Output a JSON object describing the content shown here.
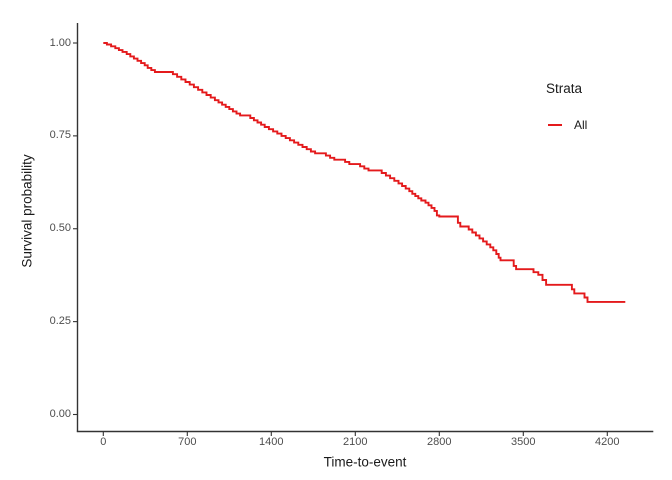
{
  "figure": {
    "background": "#FFFFFF",
    "colors": {
      "curve": "#E41A1C",
      "axis_line": "#333333",
      "tick_text": "#4D4D4D",
      "title_text": "#1A1A1A"
    }
  },
  "chart_data": {
    "type": "line",
    "subtype": "kaplan-meier-step-curve",
    "title": "",
    "xlabel": "Time-to-event",
    "ylabel": "Survival probability",
    "grid": false,
    "x_ticks": [
      0,
      700,
      1400,
      2100,
      2800,
      3500,
      4200
    ],
    "x_tick_labels": [
      "0",
      "700",
      "1400",
      "2100",
      "2800",
      "3500",
      "4200"
    ],
    "y_ticks": [
      0,
      0.25,
      0.5,
      0.75,
      1
    ],
    "y_tick_labels": [
      "0.00",
      "0.25",
      "0.50",
      "0.75",
      "1.00"
    ],
    "xlim": [
      -215,
      4580
    ],
    "ylim": [
      0,
      1.05
    ],
    "x_range_shown": [
      0,
      4350
    ],
    "legend": {
      "title": "Strata",
      "position": "right-inside-top",
      "entries": [
        {
          "label": "All",
          "color": "#E41A1C"
        }
      ]
    },
    "series": [
      {
        "name": "All",
        "color": "#E41A1C",
        "step": true,
        "points": [
          [
            0,
            1.0
          ],
          [
            30,
            0.996
          ],
          [
            65,
            0.991
          ],
          [
            100,
            0.986
          ],
          [
            130,
            0.981
          ],
          [
            160,
            0.976
          ],
          [
            195,
            0.97
          ],
          [
            225,
            0.964
          ],
          [
            255,
            0.958
          ],
          [
            285,
            0.952
          ],
          [
            315,
            0.946
          ],
          [
            345,
            0.94
          ],
          [
            370,
            0.933
          ],
          [
            400,
            0.927
          ],
          [
            430,
            0.922
          ],
          [
            580,
            0.916
          ],
          [
            615,
            0.909
          ],
          [
            650,
            0.902
          ],
          [
            685,
            0.895
          ],
          [
            720,
            0.888
          ],
          [
            755,
            0.881
          ],
          [
            790,
            0.874
          ],
          [
            825,
            0.867
          ],
          [
            860,
            0.86
          ],
          [
            895,
            0.853
          ],
          [
            930,
            0.846
          ],
          [
            960,
            0.84
          ],
          [
            990,
            0.834
          ],
          [
            1020,
            0.828
          ],
          [
            1050,
            0.822
          ],
          [
            1080,
            0.816
          ],
          [
            1110,
            0.81
          ],
          [
            1140,
            0.805
          ],
          [
            1225,
            0.798
          ],
          [
            1255,
            0.792
          ],
          [
            1285,
            0.786
          ],
          [
            1315,
            0.78
          ],
          [
            1345,
            0.774
          ],
          [
            1380,
            0.768
          ],
          [
            1415,
            0.762
          ],
          [
            1450,
            0.756
          ],
          [
            1485,
            0.75
          ],
          [
            1520,
            0.744
          ],
          [
            1555,
            0.738
          ],
          [
            1590,
            0.732
          ],
          [
            1625,
            0.726
          ],
          [
            1660,
            0.72
          ],
          [
            1695,
            0.714
          ],
          [
            1730,
            0.708
          ],
          [
            1765,
            0.703
          ],
          [
            1855,
            0.697
          ],
          [
            1890,
            0.691
          ],
          [
            1925,
            0.686
          ],
          [
            2015,
            0.68
          ],
          [
            2050,
            0.674
          ],
          [
            2140,
            0.668
          ],
          [
            2175,
            0.662
          ],
          [
            2210,
            0.657
          ],
          [
            2320,
            0.65
          ],
          [
            2355,
            0.643
          ],
          [
            2390,
            0.636
          ],
          [
            2425,
            0.629
          ],
          [
            2460,
            0.622
          ],
          [
            2490,
            0.615
          ],
          [
            2520,
            0.608
          ],
          [
            2550,
            0.601
          ],
          [
            2575,
            0.594
          ],
          [
            2600,
            0.588
          ],
          [
            2625,
            0.582
          ],
          [
            2650,
            0.576
          ],
          [
            2685,
            0.57
          ],
          [
            2710,
            0.563
          ],
          [
            2735,
            0.556
          ],
          [
            2760,
            0.548
          ],
          [
            2780,
            0.536
          ],
          [
            2800,
            0.533
          ],
          [
            2955,
            0.516
          ],
          [
            2975,
            0.506
          ],
          [
            3045,
            0.498
          ],
          [
            3075,
            0.49
          ],
          [
            3105,
            0.482
          ],
          [
            3135,
            0.474
          ],
          [
            3165,
            0.466
          ],
          [
            3195,
            0.458
          ],
          [
            3225,
            0.45
          ],
          [
            3250,
            0.442
          ],
          [
            3275,
            0.432
          ],
          [
            3295,
            0.422
          ],
          [
            3310,
            0.415
          ],
          [
            3420,
            0.4
          ],
          [
            3440,
            0.391
          ],
          [
            3585,
            0.383
          ],
          [
            3625,
            0.376
          ],
          [
            3660,
            0.362
          ],
          [
            3690,
            0.349
          ],
          [
            3905,
            0.337
          ],
          [
            3925,
            0.326
          ],
          [
            4010,
            0.315
          ],
          [
            4035,
            0.303
          ],
          [
            4350,
            0.303
          ]
        ]
      }
    ]
  }
}
